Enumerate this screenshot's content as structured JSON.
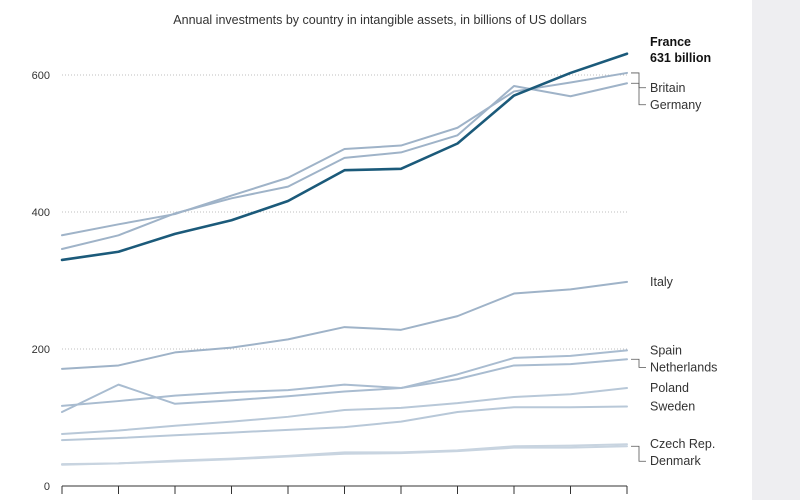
{
  "chart_data": {
    "type": "line",
    "title": "Annual investments by country in intangible assets, in billions of US dollars",
    "xlabel": "",
    "ylabel": "",
    "ylim": [
      0,
      650
    ],
    "yticks": [
      0,
      200,
      400,
      600
    ],
    "x": [
      1,
      2,
      3,
      4,
      5,
      6,
      7,
      8,
      9,
      10,
      11
    ],
    "series": [
      {
        "name": "France",
        "label": "France",
        "sublabel": "631 billion",
        "highlight": true,
        "color": "#1b5a7a",
        "values": [
          330,
          342,
          368,
          388,
          416,
          461,
          463,
          500,
          570,
          603,
          631
        ]
      },
      {
        "name": "Germany",
        "label": "Germany",
        "color": "#9fb3c8",
        "values": [
          346,
          366,
          398,
          420,
          437,
          479,
          487,
          512,
          584,
          569,
          588
        ]
      },
      {
        "name": "Britain",
        "label": "Britain",
        "color": "#9fb3c8",
        "values": [
          366,
          382,
          397,
          424,
          450,
          492,
          497,
          523,
          576,
          589,
          603
        ]
      },
      {
        "name": "Italy",
        "label": "Italy",
        "color": "#9fb3c8",
        "values": [
          171,
          176,
          195,
          202,
          214,
          232,
          228,
          248,
          281,
          287,
          298
        ]
      },
      {
        "name": "Spain",
        "label": "Spain",
        "color": "#a9bcd0",
        "values": [
          108,
          148,
          120,
          125,
          131,
          138,
          143,
          163,
          187,
          190,
          198
        ]
      },
      {
        "name": "Netherlands",
        "label": "Netherlands",
        "color": "#a9bcd0",
        "values": [
          117,
          124,
          132,
          137,
          140,
          148,
          143,
          156,
          176,
          178,
          185
        ]
      },
      {
        "name": "Poland",
        "label": "Poland",
        "color": "#b8c8d8",
        "values": [
          76,
          81,
          88,
          94,
          101,
          111,
          114,
          121,
          130,
          134,
          143
        ]
      },
      {
        "name": "Sweden",
        "label": "Sweden",
        "color": "#b8c8d8",
        "values": [
          67,
          70,
          74,
          78,
          82,
          86,
          94,
          108,
          115,
          115,
          116
        ]
      },
      {
        "name": "Czech Rep.",
        "label": "Czech Rep.",
        "color": "#c8d4e0",
        "values": [
          31,
          33,
          37,
          40,
          44,
          49,
          49,
          52,
          58,
          59,
          61
        ]
      },
      {
        "name": "Denmark",
        "label": "Denmark",
        "color": "#c8d4e0",
        "values": [
          32,
          33,
          36,
          39,
          43,
          47,
          48,
          51,
          56,
          56,
          58
        ]
      }
    ]
  }
}
